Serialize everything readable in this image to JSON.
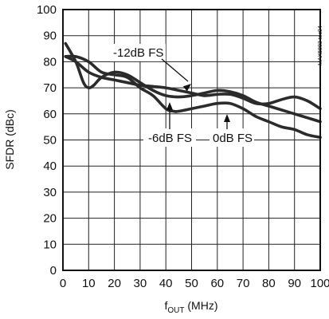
{
  "chart_data": {
    "type": "line",
    "title": "",
    "xlabel": "f",
    "xlabel_sub": "OUT",
    "xlabel_unit": " (MHz)",
    "ylabel": "SFDR (dBc)",
    "xlim": [
      0,
      100
    ],
    "ylim": [
      0,
      100
    ],
    "x_ticks": [
      0,
      10,
      20,
      30,
      40,
      50,
      60,
      70,
      80,
      90,
      100
    ],
    "y_ticks": [
      0,
      10,
      20,
      30,
      40,
      50,
      60,
      70,
      80,
      90,
      100
    ],
    "grid": true,
    "series": [
      {
        "name": "-12dB FS",
        "x": [
          1,
          5,
          10,
          15,
          20,
          25,
          30,
          35,
          40,
          45,
          50,
          55,
          60,
          65,
          70,
          75,
          80,
          85,
          90,
          95,
          100
        ],
        "y": [
          82,
          80,
          76,
          74,
          73,
          72,
          71,
          70.5,
          70,
          69,
          68,
          67,
          67.5,
          67.5,
          66,
          64,
          64,
          65.5,
          66.5,
          65,
          62
        ]
      },
      {
        "name": "-6dB FS",
        "x": [
          1,
          5,
          10,
          15,
          20,
          25,
          30,
          35,
          40,
          43,
          45,
          50,
          55,
          60,
          65,
          70,
          75,
          80,
          85,
          90,
          95,
          100
        ],
        "y": [
          82,
          82,
          80,
          76,
          75,
          74,
          70,
          67,
          62,
          61,
          61,
          62,
          63,
          64,
          64,
          62,
          59,
          57,
          55,
          54,
          52,
          51
        ]
      },
      {
        "name": "0dB FS",
        "x": [
          1,
          5,
          8,
          10,
          12,
          15,
          20,
          25,
          30,
          35,
          40,
          45,
          50,
          55,
          60,
          65,
          70,
          75,
          80,
          85,
          90,
          95,
          100
        ],
        "y": [
          87,
          80,
          72,
          70,
          71,
          74,
          76,
          75,
          72,
          69,
          67,
          66.5,
          67,
          68,
          69,
          68.5,
          67,
          64.5,
          63,
          61.5,
          60,
          58.5,
          57
        ]
      }
    ],
    "annotations": [
      {
        "text": "-12dB FS",
        "target_series": "-12dB FS"
      },
      {
        "text": "-6dB FS",
        "target_series": "-6dB FS"
      },
      {
        "text": "0dB FS",
        "target_series": "0dB FS"
      }
    ],
    "figure_code": "MAX5883 toc04"
  }
}
